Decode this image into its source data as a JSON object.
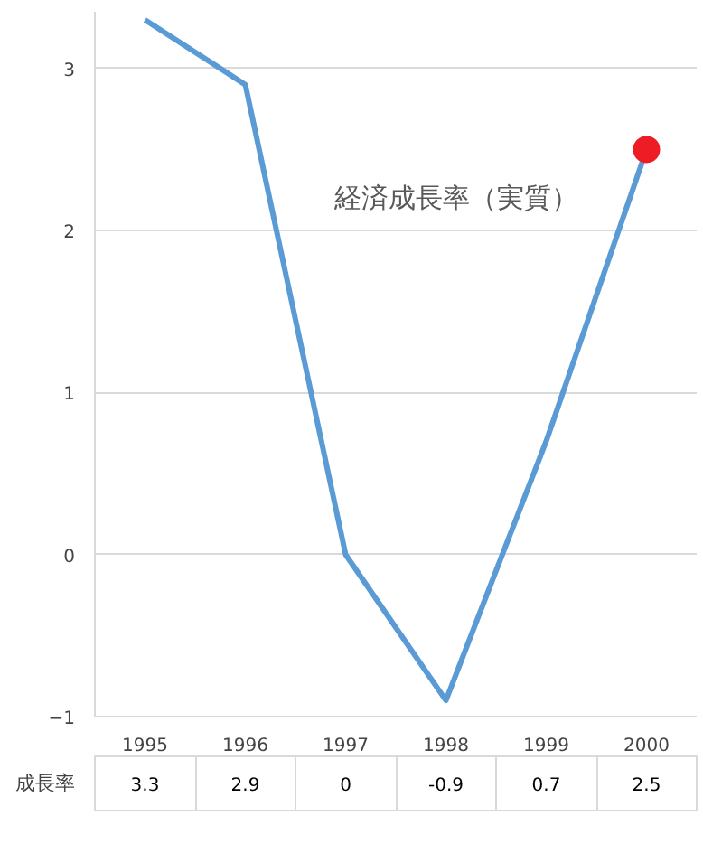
{
  "chart_data": {
    "type": "line",
    "title": "経済成長率（実質）",
    "categories": [
      "1995",
      "1996",
      "1997",
      "1998",
      "1999",
      "2000"
    ],
    "series": [
      {
        "name": "成長率",
        "color": "#5b9bd5",
        "values": [
          3.3,
          2.9,
          0,
          -0.9,
          0.7,
          2.5
        ],
        "value_labels": [
          "3.3",
          "2.9",
          "0",
          "-0.9",
          "0.7",
          "2.5"
        ]
      },
      {
        "type": "scatter",
        "marker": "circle",
        "color": "#ee1c25",
        "values": [
          null,
          null,
          null,
          null,
          null,
          2.5
        ]
      }
    ],
    "ylim": [
      -1,
      3.35
    ],
    "yticks": [
      -1,
      0,
      1,
      2,
      3
    ],
    "grid": "y",
    "legend": false,
    "line_style": "solid"
  }
}
